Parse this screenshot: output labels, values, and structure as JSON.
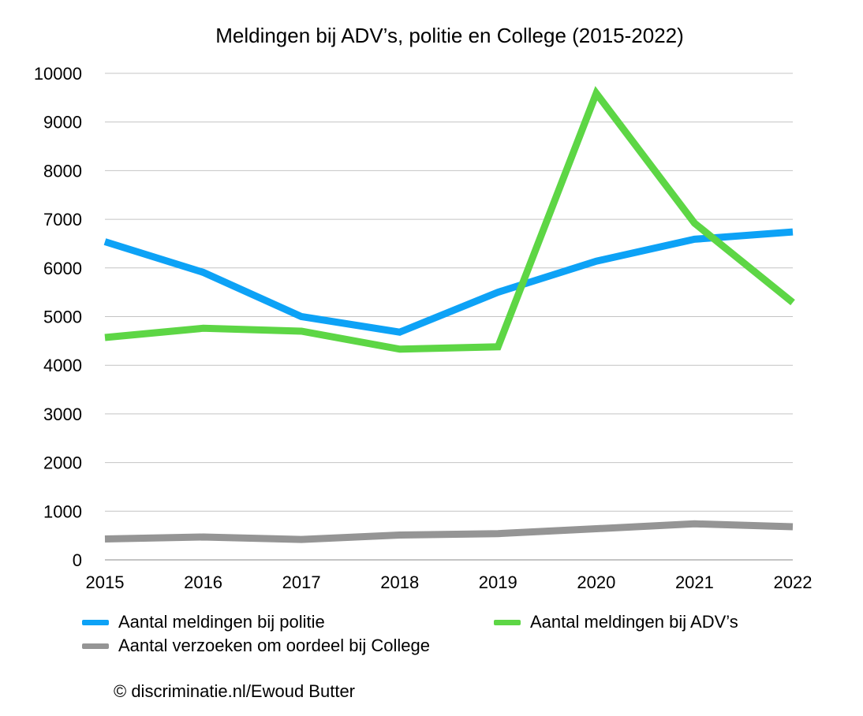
{
  "chart_data": {
    "type": "line",
    "title": "Meldingen bij ADV’s, politie en College  (2015-2022)",
    "x": [
      "2015",
      "2016",
      "2017",
      "2018",
      "2019",
      "2020",
      "2021",
      "2022"
    ],
    "ylim": [
      0,
      10000
    ],
    "yticks": [
      0,
      1000,
      2000,
      3000,
      4000,
      5000,
      6000,
      7000,
      8000,
      9000,
      10000
    ],
    "grid": true,
    "legend_position": "bottom",
    "series": [
      {
        "name": "Aantal meldingen bij politie",
        "color": "#0DA2F6",
        "values": [
          6540,
          5910,
          5000,
          4680,
          5500,
          6140,
          6590,
          6740
        ]
      },
      {
        "name": "Aantal meldingen bij ADV’s",
        "color": "#5DD645",
        "values": [
          4570,
          4760,
          4700,
          4330,
          4380,
          9590,
          6920,
          5290
        ]
      },
      {
        "name": "Aantal verzoeken om oordeel bij  College",
        "color": "#959595",
        "values": [
          430,
          470,
          420,
          510,
          540,
          640,
          740,
          680
        ]
      }
    ]
  },
  "footer": {
    "copyright": "© discriminatie.nl/Ewoud Butter"
  }
}
